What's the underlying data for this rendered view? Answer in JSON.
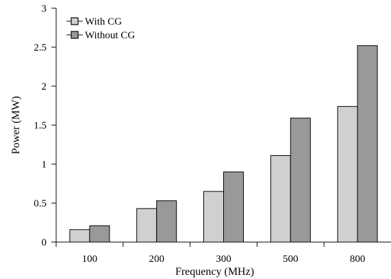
{
  "chart_data": {
    "type": "bar",
    "categories": [
      "100",
      "200",
      "300",
      "500",
      "800"
    ],
    "series": [
      {
        "name": "With CG",
        "values": [
          0.16,
          0.43,
          0.65,
          1.11,
          1.74
        ],
        "color": "#d0d0d0"
      },
      {
        "name": "Without CG",
        "values": [
          0.21,
          0.53,
          0.9,
          1.59,
          2.52
        ],
        "color": "#999999"
      }
    ],
    "title": "",
    "xlabel": "Frequency (MHz)",
    "ylabel": "Power (MW)",
    "ylim": [
      0,
      3
    ],
    "yticks": [
      "0",
      "0.5",
      "1",
      "1.5",
      "2",
      "2.5",
      "3"
    ],
    "grid": false,
    "legend_position": "top-left"
  }
}
